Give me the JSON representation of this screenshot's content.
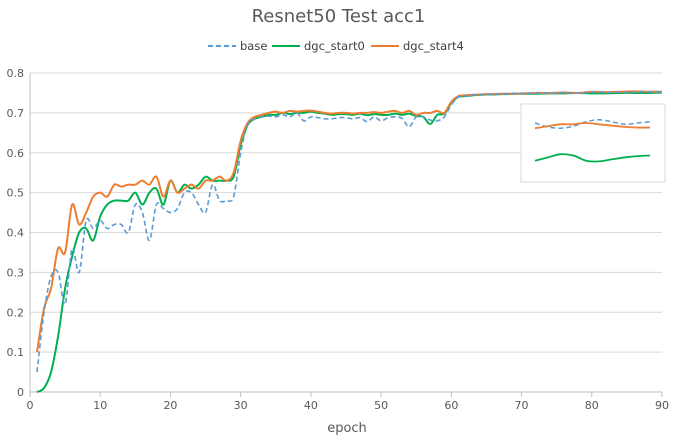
{
  "chart_data": {
    "type": "line",
    "title": "Resnet50 Test acc1",
    "xlabel": "epoch",
    "ylabel": "",
    "xlim": [
      0,
      90
    ],
    "ylim": [
      0,
      0.8
    ],
    "x_ticks": [
      "0",
      "10",
      "20",
      "30",
      "40",
      "50",
      "60",
      "70",
      "80",
      "90"
    ],
    "y_ticks": [
      "0",
      "0.1",
      "0.2",
      "0.3",
      "0.4",
      "0.5",
      "0.6",
      "0.7",
      "0.8"
    ],
    "grid": "horizontal",
    "legend_position": "top",
    "series": [
      {
        "name": "base",
        "color": "#5b9bd5",
        "dashed": true,
        "points": [
          [
            1,
            0.05
          ],
          [
            2,
            0.2
          ],
          [
            3,
            0.29
          ],
          [
            4,
            0.3
          ],
          [
            5,
            0.22
          ],
          [
            6,
            0.36
          ],
          [
            7,
            0.3
          ],
          [
            8,
            0.43
          ],
          [
            9,
            0.41
          ],
          [
            10,
            0.43
          ],
          [
            11,
            0.41
          ],
          [
            12,
            0.42
          ],
          [
            13,
            0.42
          ],
          [
            14,
            0.4
          ],
          [
            15,
            0.47
          ],
          [
            16,
            0.45
          ],
          [
            17,
            0.38
          ],
          [
            18,
            0.47
          ],
          [
            19,
            0.46
          ],
          [
            20,
            0.45
          ],
          [
            21,
            0.46
          ],
          [
            22,
            0.5
          ],
          [
            23,
            0.5
          ],
          [
            24,
            0.47
          ],
          [
            25,
            0.45
          ],
          [
            26,
            0.52
          ],
          [
            27,
            0.48
          ],
          [
            28,
            0.48
          ],
          [
            29,
            0.49
          ],
          [
            30,
            0.6
          ],
          [
            31,
            0.67
          ],
          [
            32,
            0.685
          ],
          [
            33,
            0.69
          ],
          [
            34,
            0.692
          ],
          [
            35,
            0.69
          ],
          [
            36,
            0.695
          ],
          [
            37,
            0.69
          ],
          [
            38,
            0.7
          ],
          [
            39,
            0.68
          ],
          [
            40,
            0.69
          ],
          [
            41,
            0.688
          ],
          [
            42,
            0.685
          ],
          [
            43,
            0.685
          ],
          [
            44,
            0.688
          ],
          [
            45,
            0.688
          ],
          [
            46,
            0.685
          ],
          [
            47,
            0.688
          ],
          [
            48,
            0.678
          ],
          [
            49,
            0.69
          ],
          [
            50,
            0.68
          ],
          [
            51,
            0.688
          ],
          [
            52,
            0.69
          ],
          [
            53,
            0.686
          ],
          [
            54,
            0.665
          ],
          [
            55,
            0.69
          ],
          [
            56,
            0.69
          ],
          [
            57,
            0.682
          ],
          [
            58,
            0.68
          ],
          [
            59,
            0.69
          ],
          [
            60,
            0.72
          ],
          [
            61,
            0.74
          ],
          [
            62,
            0.742
          ],
          [
            63,
            0.745
          ],
          [
            64,
            0.746
          ],
          [
            65,
            0.747
          ],
          [
            66,
            0.747
          ],
          [
            67,
            0.748
          ],
          [
            68,
            0.748
          ],
          [
            69,
            0.749
          ],
          [
            70,
            0.749
          ],
          [
            72,
            0.75
          ],
          [
            74,
            0.75
          ],
          [
            76,
            0.751
          ],
          [
            78,
            0.75
          ],
          [
            80,
            0.752
          ],
          [
            82,
            0.752
          ],
          [
            84,
            0.751
          ],
          [
            86,
            0.752
          ],
          [
            88,
            0.753
          ],
          [
            90,
            0.753
          ]
        ]
      },
      {
        "name": "dgc_start0",
        "color": "#00b050",
        "dashed": false,
        "points": [
          [
            1,
            0.0
          ],
          [
            2,
            0.01
          ],
          [
            3,
            0.05
          ],
          [
            4,
            0.14
          ],
          [
            5,
            0.26
          ],
          [
            6,
            0.34
          ],
          [
            7,
            0.4
          ],
          [
            8,
            0.41
          ],
          [
            9,
            0.38
          ],
          [
            10,
            0.44
          ],
          [
            11,
            0.47
          ],
          [
            12,
            0.48
          ],
          [
            13,
            0.48
          ],
          [
            14,
            0.48
          ],
          [
            15,
            0.5
          ],
          [
            16,
            0.47
          ],
          [
            17,
            0.5
          ],
          [
            18,
            0.51
          ],
          [
            19,
            0.47
          ],
          [
            20,
            0.53
          ],
          [
            21,
            0.5
          ],
          [
            22,
            0.52
          ],
          [
            23,
            0.51
          ],
          [
            24,
            0.52
          ],
          [
            25,
            0.54
          ],
          [
            26,
            0.53
          ],
          [
            27,
            0.53
          ],
          [
            28,
            0.53
          ],
          [
            29,
            0.54
          ],
          [
            30,
            0.62
          ],
          [
            31,
            0.67
          ],
          [
            32,
            0.685
          ],
          [
            33,
            0.69
          ],
          [
            34,
            0.695
          ],
          [
            35,
            0.695
          ],
          [
            36,
            0.7
          ],
          [
            37,
            0.697
          ],
          [
            38,
            0.7
          ],
          [
            39,
            0.7
          ],
          [
            40,
            0.703
          ],
          [
            41,
            0.7
          ],
          [
            42,
            0.698
          ],
          [
            43,
            0.695
          ],
          [
            44,
            0.697
          ],
          [
            45,
            0.697
          ],
          [
            46,
            0.695
          ],
          [
            47,
            0.698
          ],
          [
            48,
            0.694
          ],
          [
            49,
            0.697
          ],
          [
            50,
            0.695
          ],
          [
            51,
            0.695
          ],
          [
            52,
            0.698
          ],
          [
            53,
            0.695
          ],
          [
            54,
            0.698
          ],
          [
            55,
            0.692
          ],
          [
            56,
            0.69
          ],
          [
            57,
            0.672
          ],
          [
            58,
            0.695
          ],
          [
            59,
            0.698
          ],
          [
            60,
            0.725
          ],
          [
            61,
            0.74
          ],
          [
            62,
            0.742
          ],
          [
            63,
            0.744
          ],
          [
            64,
            0.745
          ],
          [
            65,
            0.746
          ],
          [
            66,
            0.746
          ],
          [
            67,
            0.747
          ],
          [
            68,
            0.747
          ],
          [
            69,
            0.748
          ],
          [
            70,
            0.748
          ],
          [
            72,
            0.748
          ],
          [
            74,
            0.749
          ],
          [
            76,
            0.749
          ],
          [
            78,
            0.75
          ],
          [
            80,
            0.749
          ],
          [
            82,
            0.749
          ],
          [
            84,
            0.75
          ],
          [
            86,
            0.75
          ],
          [
            88,
            0.75
          ],
          [
            90,
            0.751
          ]
        ]
      },
      {
        "name": "dgc_start4",
        "color": "#ed7d31",
        "dashed": false,
        "points": [
          [
            1,
            0.1
          ],
          [
            2,
            0.21
          ],
          [
            3,
            0.26
          ],
          [
            4,
            0.36
          ],
          [
            5,
            0.35
          ],
          [
            6,
            0.47
          ],
          [
            7,
            0.42
          ],
          [
            8,
            0.45
          ],
          [
            9,
            0.49
          ],
          [
            10,
            0.5
          ],
          [
            11,
            0.49
          ],
          [
            12,
            0.52
          ],
          [
            13,
            0.515
          ],
          [
            14,
            0.52
          ],
          [
            15,
            0.52
          ],
          [
            16,
            0.53
          ],
          [
            17,
            0.52
          ],
          [
            18,
            0.54
          ],
          [
            19,
            0.49
          ],
          [
            20,
            0.53
          ],
          [
            21,
            0.5
          ],
          [
            22,
            0.51
          ],
          [
            23,
            0.52
          ],
          [
            24,
            0.51
          ],
          [
            25,
            0.53
          ],
          [
            26,
            0.53
          ],
          [
            27,
            0.54
          ],
          [
            28,
            0.53
          ],
          [
            29,
            0.55
          ],
          [
            30,
            0.63
          ],
          [
            31,
            0.675
          ],
          [
            32,
            0.69
          ],
          [
            33,
            0.695
          ],
          [
            34,
            0.7
          ],
          [
            35,
            0.703
          ],
          [
            36,
            0.7
          ],
          [
            37,
            0.705
          ],
          [
            38,
            0.703
          ],
          [
            39,
            0.705
          ],
          [
            40,
            0.706
          ],
          [
            41,
            0.703
          ],
          [
            42,
            0.7
          ],
          [
            43,
            0.698
          ],
          [
            44,
            0.7
          ],
          [
            45,
            0.7
          ],
          [
            46,
            0.698
          ],
          [
            47,
            0.7
          ],
          [
            48,
            0.7
          ],
          [
            49,
            0.702
          ],
          [
            50,
            0.7
          ],
          [
            51,
            0.703
          ],
          [
            52,
            0.705
          ],
          [
            53,
            0.7
          ],
          [
            54,
            0.705
          ],
          [
            55,
            0.695
          ],
          [
            56,
            0.7
          ],
          [
            57,
            0.7
          ],
          [
            58,
            0.705
          ],
          [
            59,
            0.7
          ],
          [
            60,
            0.728
          ],
          [
            61,
            0.742
          ],
          [
            62,
            0.744
          ],
          [
            63,
            0.745
          ],
          [
            64,
            0.746
          ],
          [
            65,
            0.747
          ],
          [
            66,
            0.747
          ],
          [
            67,
            0.748
          ],
          [
            68,
            0.748
          ],
          [
            69,
            0.748
          ],
          [
            70,
            0.749
          ],
          [
            72,
            0.75
          ],
          [
            74,
            0.75
          ],
          [
            76,
            0.751
          ],
          [
            78,
            0.75
          ],
          [
            80,
            0.753
          ],
          [
            82,
            0.752
          ],
          [
            84,
            0.753
          ],
          [
            86,
            0.754
          ],
          [
            88,
            0.753
          ],
          [
            90,
            0.753
          ]
        ]
      }
    ],
    "inset": {
      "description_visible": false,
      "series": [
        {
          "name": "base",
          "values": [
            0.67,
            0.664,
            0.662,
            0.665,
            0.672,
            0.675,
            0.672,
            0.668,
            0.67,
            0.672
          ]
        },
        {
          "name": "dgc_start0",
          "values": [
            0.612,
            0.617,
            0.622,
            0.62,
            0.612,
            0.611,
            0.614,
            0.617,
            0.619,
            0.62
          ]
        },
        {
          "name": "dgc_start4",
          "values": [
            0.662,
            0.665,
            0.668,
            0.668,
            0.67,
            0.668,
            0.666,
            0.664,
            0.663,
            0.663
          ]
        }
      ]
    }
  }
}
